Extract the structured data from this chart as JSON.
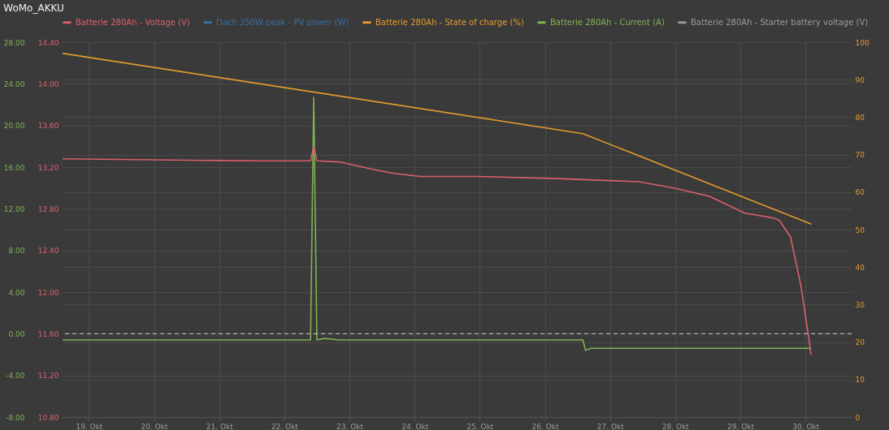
{
  "chart_data": {
    "type": "line",
    "title": "WoMo_AKKU",
    "xlim": [
      "--10-18T14:00",
      "--10-30T17:00"
    ],
    "xticks": [
      {
        "value": "--10-19",
        "label": "19. Okt"
      },
      {
        "value": "--10-20",
        "label": "20. Okt"
      },
      {
        "value": "--10-21",
        "label": "21. Okt"
      },
      {
        "value": "--10-22",
        "label": "22. Okt"
      },
      {
        "value": "--10-23",
        "label": "23. Okt"
      },
      {
        "value": "--10-24",
        "label": "24. Okt"
      },
      {
        "value": "--10-25",
        "label": "25. Okt"
      },
      {
        "value": "--10-26",
        "label": "26. Okt"
      },
      {
        "value": "--10-27",
        "label": "27. Okt"
      },
      {
        "value": "--10-28",
        "label": "28. Okt"
      },
      {
        "value": "--10-29",
        "label": "29. Okt"
      },
      {
        "value": "--10-30",
        "label": "30. Okt"
      }
    ],
    "ylim": [
      -8,
      28
    ],
    "yticks": [
      {
        "value": -8,
        "label": "-8.00"
      },
      {
        "value": -4,
        "label": "-4.00"
      },
      {
        "value": 0,
        "label": "0.00"
      },
      {
        "value": 4,
        "label": "4.00"
      },
      {
        "value": 8,
        "label": "8.00"
      },
      {
        "value": 12,
        "label": "12.00"
      },
      {
        "value": 16,
        "label": "16.00"
      },
      {
        "value": 20,
        "label": "20.00"
      },
      {
        "value": 24,
        "label": "24.00"
      },
      {
        "value": 28,
        "label": "28.00"
      }
    ],
    "y3lim": [
      10.8,
      14.4
    ],
    "y3ticks": [
      {
        "value": 10.8,
        "label": "10.80"
      },
      {
        "value": 11.2,
        "label": "11.20"
      },
      {
        "value": 11.6,
        "label": "11.60"
      },
      {
        "value": 12.0,
        "label": "12.00"
      },
      {
        "value": 12.4,
        "label": "12.40"
      },
      {
        "value": 12.8,
        "label": "12.80"
      },
      {
        "value": 13.2,
        "label": "13.20"
      },
      {
        "value": 13.6,
        "label": "13.60"
      },
      {
        "value": 14.0,
        "label": "14.00"
      },
      {
        "value": 14.4,
        "label": "14.40"
      }
    ],
    "y2lim": [
      0,
      100
    ],
    "y2ticks": [
      0,
      10,
      20,
      30,
      40,
      50,
      60,
      70,
      80,
      90,
      100
    ],
    "grid": true,
    "legend": "top",
    "marker": "none",
    "ref_lines": [
      {
        "axis": "y",
        "value": 0,
        "color": "#d0d0d0",
        "line_style": "dashed"
      }
    ],
    "series": [
      {
        "name": "Batterie 280Ah - Voltage (V)",
        "color": "#d9606c",
        "axis": "y3",
        "x": [
          "--10-18T14:30",
          "--10-20T00:00",
          "--10-21T14:30",
          "--10-22T09:40",
          "--10-22T10:50",
          "--10-22T12:00",
          "--10-22T20:20",
          "--10-23T08:20",
          "--10-23T16:20",
          "--10-24T02:10",
          "--10-24T23:10",
          "--10-26T05:00",
          "--10-26T14:00",
          "--10-27T10:40",
          "--10-27T23:30",
          "--10-28T12:40",
          "--10-29T01:30",
          "--10-29T12:30",
          "--10-29T14:20",
          "--10-29T18:30",
          "--10-29T22:20",
          "--10-30T01:20",
          "--10-30T02:00"
        ],
        "values": [
          13.28,
          13.27,
          13.26,
          13.26,
          13.4,
          13.26,
          13.25,
          13.18,
          13.14,
          13.11,
          13.11,
          13.09,
          13.08,
          13.06,
          13.0,
          12.92,
          12.76,
          12.71,
          12.69,
          12.53,
          12.06,
          11.54,
          11.4
        ]
      },
      {
        "name": "Dach 350W peak - PV power (W)",
        "color": "#3a6e9e",
        "axis": "y"
      },
      {
        "name": "Batterie 280Ah - State of charge (%)",
        "color": "#e39a2e",
        "axis": "y2",
        "x": [
          "--10-18T14:30",
          "--10-26T14:00",
          "--10-30T02:00"
        ],
        "values": [
          97,
          75.6,
          51.5
        ]
      },
      {
        "name": "Batterie 280Ah - Current (A)",
        "color": "#7fb352",
        "axis": "y",
        "x": [
          "--10-18T14:30",
          "--10-22T09:40",
          "--10-22T10:50",
          "--10-22T12:00",
          "--10-22T15:00",
          "--10-22T20:00",
          "--10-26T14:00",
          "--10-26T15:00",
          "--10-26T17:00",
          "--10-30T02:00"
        ],
        "values": [
          -0.6,
          -0.6,
          22.7,
          -0.6,
          -0.45,
          -0.6,
          -0.6,
          -1.6,
          -1.4,
          -1.4
        ]
      },
      {
        "name": "Batterie 280Ah - Starter battery voltage (V)",
        "color": "#9a9a9a",
        "axis": "y3"
      }
    ]
  }
}
